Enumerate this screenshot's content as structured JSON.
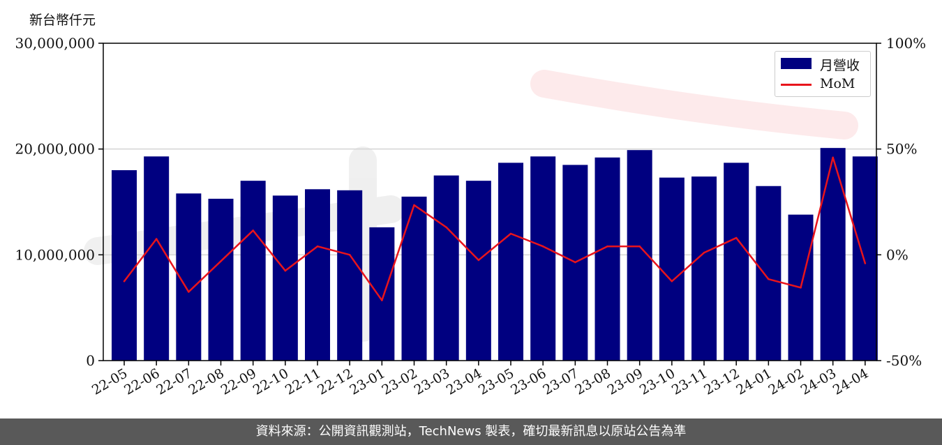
{
  "chart_data": {
    "type": "bar",
    "y_unit_label": "新台幣仟元",
    "categories": [
      "22-05",
      "22-06",
      "22-07",
      "22-08",
      "22-09",
      "22-10",
      "22-11",
      "22-12",
      "23-01",
      "23-02",
      "23-03",
      "23-04",
      "23-05",
      "23-06",
      "23-07",
      "23-08",
      "23-09",
      "23-10",
      "23-11",
      "23-12",
      "24-01",
      "24-02",
      "24-03",
      "24-04"
    ],
    "series": [
      {
        "name": "月營收",
        "axis": "left",
        "type": "bar",
        "color": "#000080",
        "values": [
          18000000,
          19300000,
          15800000,
          15300000,
          17000000,
          15600000,
          16200000,
          16100000,
          12600000,
          15500000,
          17500000,
          17000000,
          18700000,
          19300000,
          18500000,
          19200000,
          19900000,
          17300000,
          17400000,
          18700000,
          16500000,
          13800000,
          20100000,
          19300000
        ]
      },
      {
        "name": "MoM",
        "axis": "right",
        "type": "line",
        "color": "#e8141c",
        "values": [
          -12.5,
          7.5,
          -17.5,
          -3,
          11.5,
          -7.5,
          4,
          0,
          -21.5,
          23.5,
          13,
          -2.5,
          10,
          4,
          -3.5,
          4,
          4,
          -12.5,
          1,
          8,
          -11.5,
          -15.5,
          46,
          -4
        ]
      }
    ],
    "y_left": {
      "min": 0,
      "max": 30000000,
      "ticks": [
        0,
        10000000,
        20000000,
        30000000
      ],
      "tick_labels": [
        "0",
        "10,000,000",
        "20,000,000",
        "30,000,000"
      ]
    },
    "y_right": {
      "min": -50,
      "max": 100,
      "ticks": [
        -50,
        0,
        50,
        100
      ],
      "tick_labels": [
        "-50%",
        "0%",
        "50%",
        "100%"
      ]
    },
    "grid": "horizontal",
    "legend_position": "top-right"
  },
  "footer": "資料來源：公開資訊觀測站，TechNews 製表，確切最新訊息以原站公告為準"
}
